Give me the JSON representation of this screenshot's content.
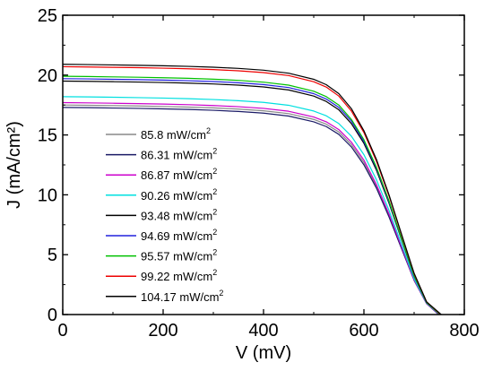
{
  "chart_data": {
    "type": "line",
    "xlabel": "V (mV)",
    "ylabel": "J (mA/cm²)",
    "xlim": [
      0,
      800
    ],
    "ylim": [
      0,
      25
    ],
    "x_ticks": [
      0,
      200,
      400,
      600,
      800
    ],
    "y_ticks": [
      0,
      5,
      10,
      15,
      20,
      25
    ],
    "grid": false,
    "legend_position": "lower-left",
    "legend_unit_base": "mW/cm",
    "legend_unit_sup": "2",
    "x": [
      0,
      50,
      100,
      150,
      200,
      250,
      300,
      350,
      400,
      450,
      500,
      525,
      550,
      575,
      600,
      625,
      650,
      675,
      700,
      725,
      745
    ],
    "series": [
      {
        "name": "85.8",
        "color": "#888888",
        "voc": 750,
        "values": [
          17.5,
          17.48,
          17.45,
          17.42,
          17.38,
          17.33,
          17.26,
          17.16,
          17.02,
          16.78,
          16.3,
          15.9,
          15.25,
          14.2,
          12.7,
          10.7,
          8.3,
          5.6,
          2.9,
          0.9,
          0
        ]
      },
      {
        "name": "86.31",
        "color": "#1a1a66",
        "voc": 749,
        "values": [
          17.3,
          17.28,
          17.25,
          17.22,
          17.18,
          17.13,
          17.06,
          16.96,
          16.82,
          16.58,
          16.1,
          15.7,
          15.05,
          14.0,
          12.5,
          10.55,
          8.15,
          5.5,
          2.85,
          0.9,
          0
        ]
      },
      {
        "name": "86.87",
        "color": "#cc00cc",
        "voc": 750,
        "values": [
          17.7,
          17.68,
          17.65,
          17.62,
          17.58,
          17.53,
          17.46,
          17.36,
          17.22,
          16.98,
          16.5,
          16.1,
          15.45,
          14.4,
          12.9,
          10.85,
          8.4,
          5.65,
          2.9,
          0.9,
          0
        ]
      },
      {
        "name": "90.26",
        "color": "#00e0e0",
        "voc": 751,
        "values": [
          18.2,
          18.18,
          18.15,
          18.12,
          18.08,
          18.03,
          17.96,
          17.86,
          17.72,
          17.48,
          17.0,
          16.6,
          15.95,
          14.9,
          13.35,
          11.25,
          8.7,
          5.85,
          3.0,
          0.95,
          0
        ]
      },
      {
        "name": "93.48",
        "color": "#000000",
        "voc": 752,
        "values": [
          19.5,
          19.48,
          19.45,
          19.42,
          19.38,
          19.33,
          19.26,
          19.16,
          19.01,
          18.76,
          18.25,
          17.8,
          17.1,
          15.95,
          14.3,
          12.05,
          9.3,
          6.25,
          3.2,
          1.0,
          0
        ]
      },
      {
        "name": "94.69",
        "color": "#2020dd",
        "voc": 752,
        "values": [
          19.7,
          19.68,
          19.65,
          19.62,
          19.58,
          19.53,
          19.46,
          19.36,
          19.21,
          18.96,
          18.45,
          18.0,
          17.3,
          16.15,
          14.45,
          12.2,
          9.4,
          6.3,
          3.2,
          1.0,
          0
        ]
      },
      {
        "name": "95.57",
        "color": "#00c000",
        "voc": 752,
        "values": [
          19.9,
          19.88,
          19.85,
          19.82,
          19.78,
          19.73,
          19.66,
          19.56,
          19.41,
          19.16,
          18.65,
          18.2,
          17.5,
          16.3,
          14.6,
          12.3,
          9.5,
          6.35,
          3.25,
          1.0,
          0
        ]
      },
      {
        "name": "99.22",
        "color": "#ee0000",
        "voc": 753,
        "values": [
          20.7,
          20.68,
          20.65,
          20.62,
          20.58,
          20.53,
          20.46,
          20.36,
          20.21,
          19.96,
          19.45,
          19.0,
          18.25,
          17.0,
          15.2,
          12.8,
          9.9,
          6.65,
          3.4,
          1.05,
          0
        ]
      },
      {
        "name": "104.17",
        "color": "#000000",
        "voc": 754,
        "values": [
          20.9,
          20.88,
          20.85,
          20.82,
          20.78,
          20.73,
          20.66,
          20.56,
          20.41,
          20.16,
          19.65,
          19.2,
          18.45,
          17.2,
          15.35,
          12.95,
          10.0,
          6.7,
          3.45,
          1.05,
          0
        ]
      }
    ]
  }
}
